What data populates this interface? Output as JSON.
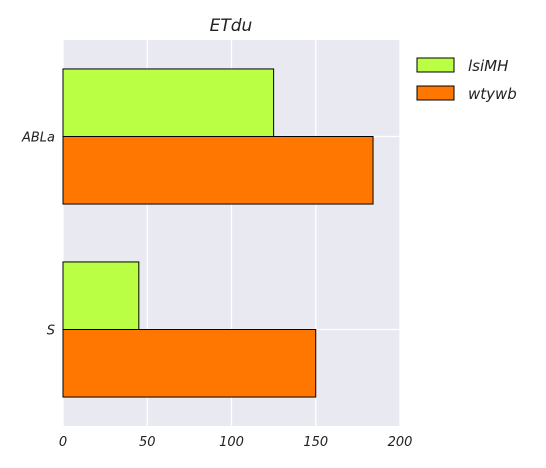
{
  "chart_data": {
    "type": "bar",
    "orientation": "horizontal",
    "title": "ETdu",
    "xlabel": "",
    "ylabel": "",
    "categories": [
      "ABLa",
      "S"
    ],
    "series": [
      {
        "name": "lsiMH",
        "values": [
          125,
          45
        ],
        "color": "#bbff44"
      },
      {
        "name": "wtywb",
        "values": [
          184,
          150
        ],
        "color": "#ff7700"
      }
    ],
    "xlim": [
      0,
      200
    ],
    "xticks": [
      0,
      50,
      100,
      150,
      200
    ],
    "grid": true,
    "legend_position": "outside-top-right",
    "background_color": "#e9e9f2",
    "grid_color": "#ffffff",
    "bar_edge_color": "#000000"
  }
}
